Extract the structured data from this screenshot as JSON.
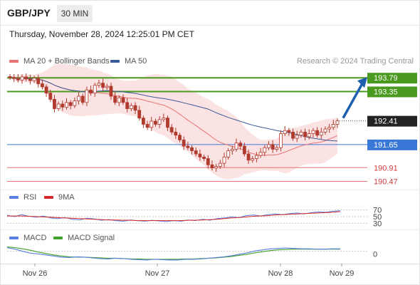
{
  "header": {
    "symbol": "GBP/JPY",
    "timeframe": "30 MIN",
    "datetime": "Thursday, November 28, 2024 12:25:01 PM CET",
    "credit": "Research © 2024 Trading Central"
  },
  "legend": {
    "ma20": "MA 20 + Bollinger Bands",
    "ma50": "MA 50",
    "rsi": "RSI",
    "rsi_ma": "9MA",
    "macd": "MACD",
    "macd_signal": "MACD Signal"
  },
  "colors": {
    "candle": "#b03a2e",
    "ma20": "#e57373",
    "ma50": "#3b5a99",
    "bollinger_fill": "#fbdcdc",
    "resistance": "#4a9a1f",
    "pivot": "#3a78d8",
    "support": "#e57373",
    "target_arrow": "#1f5fb0",
    "last_price_box": "#222222",
    "rsi_line": "#5b7fe0",
    "rsi_ma_line": "#d62828",
    "macd_line": "#5b7fe0",
    "macd_signal_line": "#3fa02a"
  },
  "chart_data": [
    {
      "type": "candlestick",
      "series": [
        {
          "name": "GBP/JPY",
          "close": [
            193.8,
            193.77,
            193.72,
            193.82,
            193.75,
            193.7,
            193.78,
            193.6,
            193.5,
            193.3,
            193.1,
            192.8,
            192.95,
            192.85,
            193.0,
            192.9,
            193.05,
            193.2,
            193.0,
            193.4,
            193.3,
            193.55,
            193.62,
            193.48,
            193.52,
            193.2,
            193.0,
            193.15,
            193.0,
            192.8,
            192.9,
            192.75,
            192.5,
            192.3,
            192.2,
            192.4,
            192.3,
            192.45,
            192.5,
            192.2,
            192.05,
            191.95,
            191.8,
            191.6,
            191.55,
            191.45,
            191.35,
            191.25,
            191.2,
            191.0,
            190.9,
            190.95,
            191.05,
            191.25,
            191.45,
            191.5,
            191.7,
            191.6,
            191.35,
            191.15,
            191.2,
            191.3,
            191.4,
            191.55,
            191.65,
            191.5,
            191.55,
            192.0,
            192.1,
            192.05,
            191.85,
            191.95,
            192.05,
            191.9,
            192.0,
            192.1,
            191.95,
            192.05,
            192.15,
            192.2,
            192.3,
            192.41
          ],
          "current_price": 192.41
        },
        {
          "name": "MA 20"
        },
        {
          "name": "MA 50"
        }
      ],
      "levels": [
        {
          "value": 193.79,
          "kind": "resistance",
          "label": "193.79"
        },
        {
          "value": 193.35,
          "kind": "resistance",
          "label": "193.35"
        },
        {
          "value": 191.65,
          "kind": "pivot",
          "label": "191.65"
        },
        {
          "value": 190.91,
          "kind": "support",
          "label": "190.91"
        },
        {
          "value": 190.47,
          "kind": "support",
          "label": "190.47"
        }
      ],
      "current_label": "192.41",
      "target": {
        "from": 192.41,
        "to": 193.79
      },
      "x_ticks": [
        "Nov 26",
        "Nov 27",
        "Nov 28",
        "Nov 29"
      ],
      "y_range": [
        190.3,
        194.0
      ]
    },
    {
      "type": "line",
      "series": [
        {
          "name": "RSI",
          "values": [
            54,
            50,
            56,
            51,
            48,
            52,
            46,
            44,
            47,
            42,
            40,
            45,
            43,
            39,
            41,
            38,
            36,
            40,
            38,
            36,
            39,
            37,
            35,
            38,
            36,
            40,
            38,
            42,
            39,
            44,
            46,
            49,
            47,
            53,
            55,
            52,
            56,
            58,
            56,
            59,
            61,
            58,
            62,
            64,
            63,
            66,
            68
          ]
        },
        {
          "name": "9MA",
          "values": [
            52,
            52,
            52,
            51,
            50,
            49,
            48,
            47,
            46,
            45,
            44,
            43,
            42,
            41,
            40,
            40,
            39,
            39,
            38,
            38,
            38,
            38,
            38,
            38,
            38,
            39,
            39,
            40,
            41,
            42,
            44,
            46,
            47,
            49,
            51,
            52,
            53,
            55,
            56,
            57,
            58,
            59,
            60,
            61,
            62,
            63,
            65
          ]
        }
      ],
      "y_ticks": [
        "70",
        "50",
        "30"
      ],
      "y_range": [
        20,
        80
      ]
    },
    {
      "type": "line",
      "series": [
        {
          "name": "MACD",
          "values": [
            0.1,
            0.06,
            0.0,
            -0.05,
            -0.07,
            -0.1,
            -0.13,
            -0.16,
            -0.17,
            -0.15,
            -0.16,
            -0.18,
            -0.2,
            -0.21,
            -0.19,
            -0.2,
            -0.22,
            -0.23,
            -0.24,
            -0.22,
            -0.23,
            -0.24,
            -0.24,
            -0.22,
            -0.22,
            -0.21,
            -0.19,
            -0.17,
            -0.15,
            -0.12,
            -0.08,
            -0.04,
            0.01,
            0.04,
            0.07,
            0.08,
            0.09,
            0.08,
            0.07,
            0.07,
            0.06,
            0.06,
            0.07,
            0.07
          ]
        },
        {
          "name": "MACD Signal",
          "values": [
            0.12,
            0.1,
            0.07,
            0.03,
            -0.02,
            -0.06,
            -0.1,
            -0.13,
            -0.15,
            -0.16,
            -0.16,
            -0.17,
            -0.18,
            -0.19,
            -0.19,
            -0.2,
            -0.21,
            -0.21,
            -0.22,
            -0.22,
            -0.22,
            -0.22,
            -0.22,
            -0.21,
            -0.21,
            -0.2,
            -0.19,
            -0.18,
            -0.16,
            -0.14,
            -0.11,
            -0.08,
            -0.04,
            -0.01,
            0.02,
            0.04,
            0.05,
            0.06,
            0.06,
            0.06,
            0.06,
            0.06,
            0.06,
            0.06
          ]
        }
      ],
      "y_ticks": [
        "0"
      ],
      "y_range": [
        -0.3,
        0.25
      ]
    }
  ]
}
